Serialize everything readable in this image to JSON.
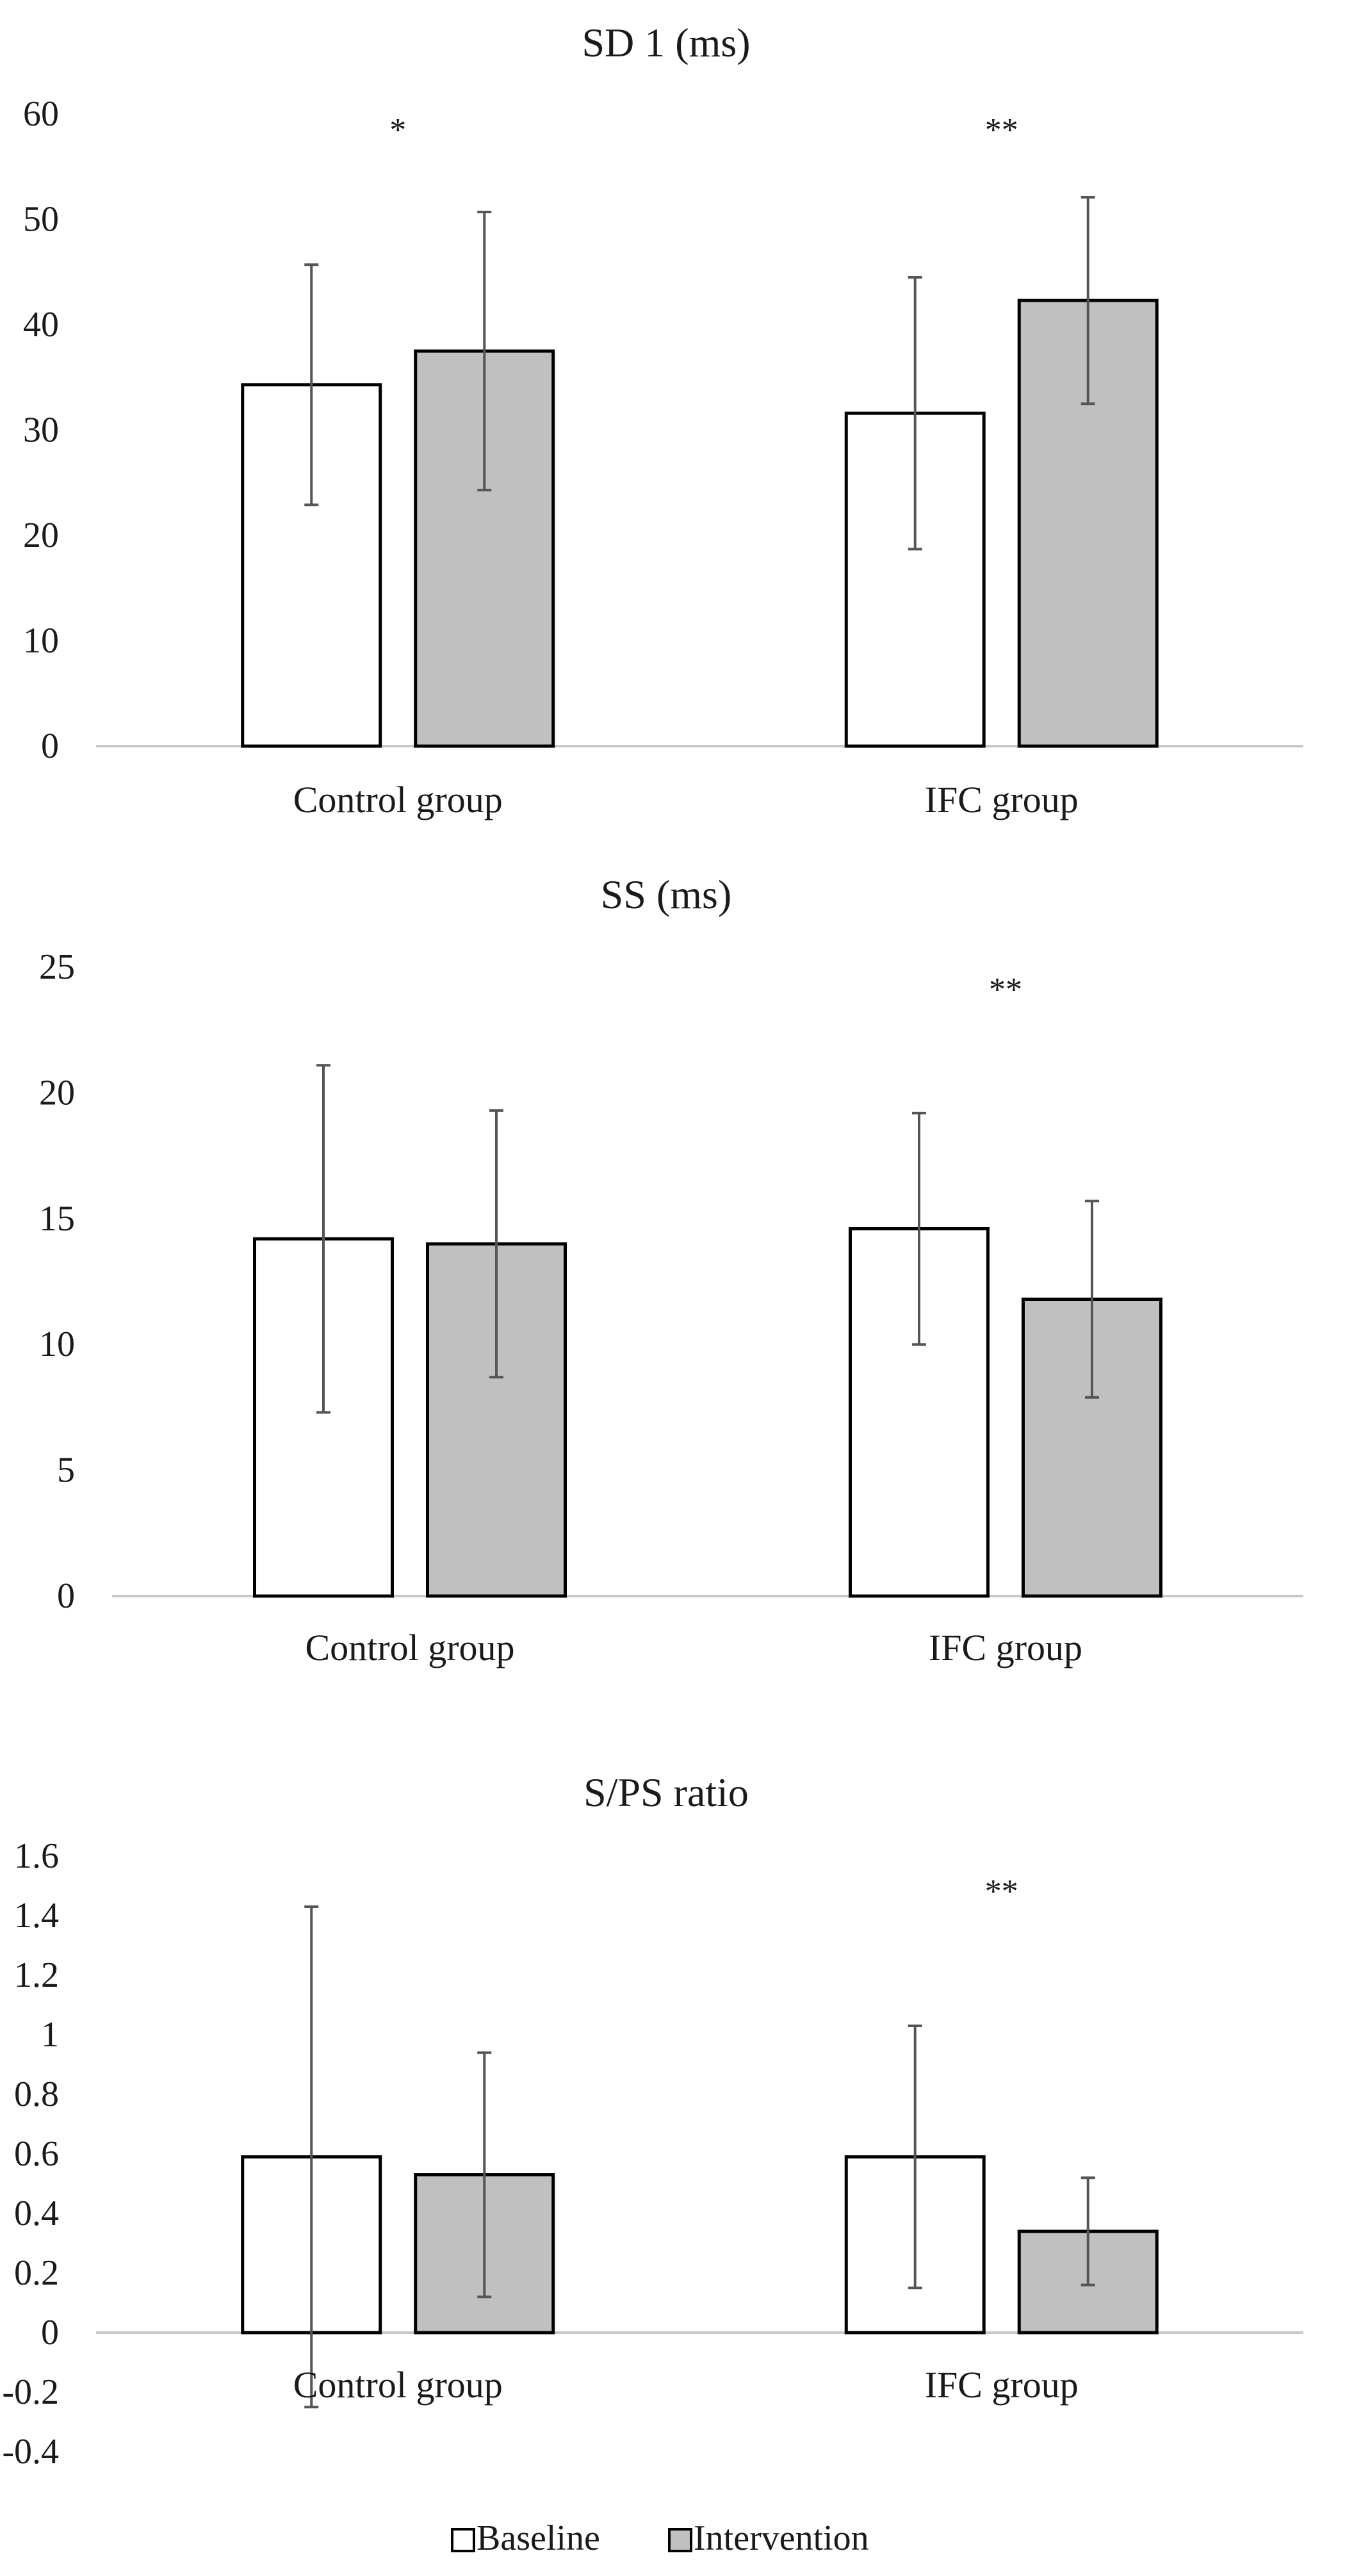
{
  "legend": {
    "items": [
      {
        "label": "Baseline",
        "color": "#ffffff"
      },
      {
        "label": "Intervention",
        "color": "#c0c0c0"
      }
    ]
  },
  "chart_data": [
    {
      "type": "bar",
      "title": "SD 1 (ms)",
      "categories": [
        "Control group",
        "IFC group"
      ],
      "series": [
        {
          "name": "Baseline",
          "values": [
            34.3,
            31.6
          ],
          "errors": [
            11.4,
            12.9
          ]
        },
        {
          "name": "Intervention",
          "values": [
            37.5,
            42.3
          ],
          "errors": [
            13.2,
            9.8
          ]
        }
      ],
      "ylim": [
        0,
        60
      ],
      "yticks": [
        "0",
        "10",
        "20",
        "30",
        "40",
        "50",
        "60"
      ],
      "significance": [
        "*",
        "**"
      ],
      "xlabel": "",
      "ylabel": ""
    },
    {
      "type": "bar",
      "title": "SS (ms)",
      "categories": [
        "Control group",
        "IFC group"
      ],
      "series": [
        {
          "name": "Baseline",
          "values": [
            14.2,
            14.6
          ],
          "errors": [
            6.9,
            4.6
          ]
        },
        {
          "name": "Intervention",
          "values": [
            14.0,
            11.8
          ],
          "errors": [
            5.3,
            3.9
          ]
        }
      ],
      "ylim": [
        0,
        25
      ],
      "yticks": [
        "0",
        "5",
        "10",
        "15",
        "20",
        "25"
      ],
      "significance": [
        "",
        "**"
      ],
      "xlabel": "",
      "ylabel": ""
    },
    {
      "type": "bar",
      "title": "S/PS ratio",
      "categories": [
        "Control group",
        "IFC group"
      ],
      "series": [
        {
          "name": "Baseline",
          "values": [
            0.59,
            0.59
          ],
          "errors": [
            0.84,
            0.44
          ]
        },
        {
          "name": "Intervention",
          "values": [
            0.53,
            0.34
          ],
          "errors": [
            0.41,
            0.18
          ]
        }
      ],
      "ylim": [
        -0.4,
        1.6
      ],
      "yticks": [
        "-0.4",
        "-0.2",
        "0",
        "0.2",
        "0.4",
        "0.6",
        "0.8",
        "1",
        "1.2",
        "1.4",
        "1.6"
      ],
      "significance": [
        "",
        "**"
      ],
      "xlabel": "",
      "ylabel": ""
    }
  ]
}
